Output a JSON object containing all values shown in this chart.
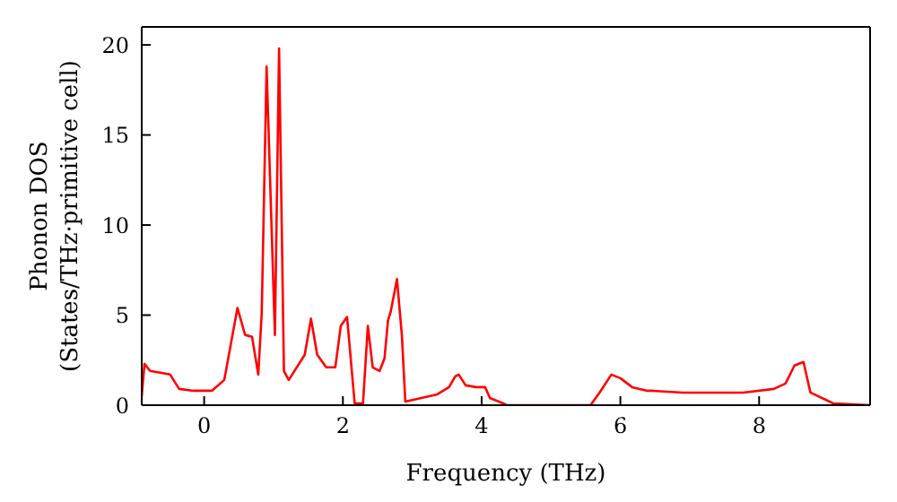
{
  "chart_data": {
    "type": "line",
    "xlabel": "Frequency (THz)",
    "ylabel": "Phonon DOS\n(States/THz·primitive cell)",
    "x": [
      -0.9,
      -0.86,
      -0.78,
      -0.49,
      -0.36,
      -0.15,
      0.11,
      0.29,
      0.48,
      0.59,
      0.69,
      0.78,
      0.83,
      0.9,
      1.02,
      1.08,
      1.15,
      1.22,
      1.45,
      1.54,
      1.63,
      1.76,
      1.89,
      1.97,
      2.06,
      2.17,
      2.29,
      2.36,
      2.43,
      2.53,
      2.6,
      2.65,
      2.69,
      2.78,
      2.85,
      2.9,
      3.36,
      3.53,
      3.62,
      3.67,
      3.77,
      3.92,
      4.05,
      4.12,
      4.31,
      4.36,
      5.57,
      5.7,
      5.87,
      6.0,
      6.17,
      6.39,
      6.47,
      6.9,
      7.77,
      8.21,
      8.38,
      8.51,
      8.64,
      8.74,
      9.07,
      9.6
    ],
    "series": [
      {
        "color": "#ff0000",
        "values": [
          0.5,
          2.3,
          1.9,
          1.7,
          0.9,
          0.8,
          0.8,
          1.4,
          5.4,
          3.9,
          3.8,
          1.7,
          5.1,
          18.8,
          3.9,
          19.8,
          1.9,
          1.4,
          2.8,
          4.8,
          2.8,
          2.1,
          2.1,
          4.4,
          4.9,
          0.1,
          0.1,
          4.4,
          2.1,
          1.9,
          2.6,
          4.7,
          5.2,
          7.0,
          3.9,
          0.2,
          0.6,
          1.0,
          1.6,
          1.7,
          1.1,
          1.0,
          1.0,
          0.4,
          0.1,
          0,
          0,
          0.7,
          1.7,
          1.5,
          1.0,
          0.8,
          0.8,
          0.7,
          0.7,
          0.9,
          1.2,
          2.2,
          2.4,
          0.7,
          0.1,
          0
        ]
      }
    ],
    "xlim": [
      -0.9,
      9.6
    ],
    "xticks": [
      0,
      2,
      4,
      6,
      8
    ],
    "ylim": [
      0,
      21
    ],
    "yticks": [
      0,
      5,
      10,
      15,
      20
    ],
    "grid": false,
    "marker": "none",
    "line_style": "solid"
  }
}
